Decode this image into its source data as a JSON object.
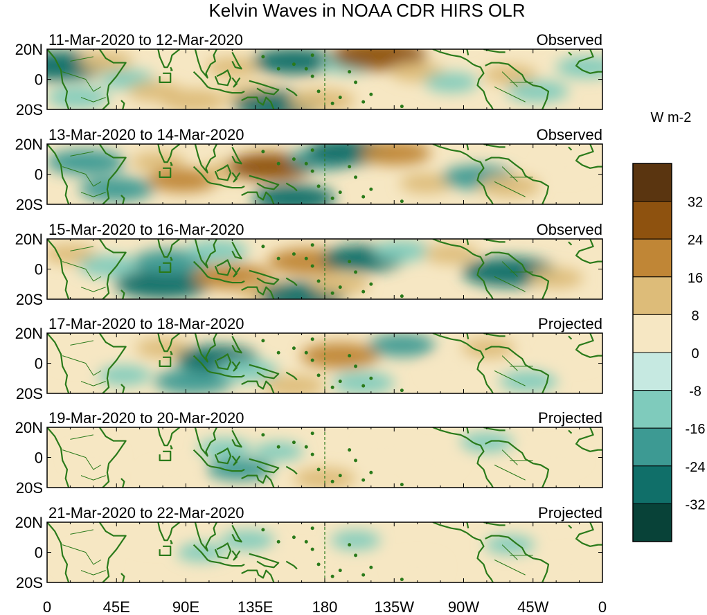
{
  "chart_data": {
    "type": "heatmap",
    "title": "Kelvin Waves in NOAA CDR HIRS OLR",
    "units": "W m-2",
    "x_ticks": [
      "0",
      "45E",
      "90E",
      "135E",
      "180",
      "135W",
      "90W",
      "45W",
      "0"
    ],
    "x_tick_lons": [
      0,
      45,
      90,
      135,
      180,
      225,
      270,
      315,
      360
    ],
    "y_ticks": [
      "20N",
      "0",
      "20S"
    ],
    "y_tick_lats": [
      20,
      0,
      -20
    ],
    "xlim": [
      0,
      360
    ],
    "ylim": [
      -20,
      20
    ],
    "colorbar": {
      "labels": [
        "32",
        "24",
        "16",
        "8",
        "0",
        "-8",
        "-16",
        "-24",
        "-32"
      ],
      "levels": [
        32,
        24,
        16,
        8,
        0,
        -8,
        -16,
        -24,
        -32
      ],
      "colors": [
        "#5a3510",
        "#8e520f",
        "#c08636",
        "#ddbc79",
        "#f6e7c3",
        "#c6e9e1",
        "#7fcbbc",
        "#3d9a93",
        "#106f69",
        "#084238"
      ]
    },
    "panels": [
      {
        "period": "11-Mar-2020 to 12-Mar-2020",
        "status": "Observed",
        "anomalies": [
          {
            "lon": 8,
            "lat": 9,
            "value": -30
          },
          {
            "lon": 20,
            "lat": -12,
            "value": -14
          },
          {
            "lon": 38,
            "lat": 12,
            "value": 10
          },
          {
            "lon": 52,
            "lat": 0,
            "value": -10
          },
          {
            "lon": 70,
            "lat": -8,
            "value": 10
          },
          {
            "lon": 95,
            "lat": -14,
            "value": 16
          },
          {
            "lon": 120,
            "lat": 8,
            "value": 10
          },
          {
            "lon": 135,
            "lat": -10,
            "value": 12
          },
          {
            "lon": 160,
            "lat": 12,
            "value": -24
          },
          {
            "lon": 150,
            "lat": -17,
            "value": -28
          },
          {
            "lon": 178,
            "lat": -14,
            "value": 16
          },
          {
            "lon": 195,
            "lat": 10,
            "value": -10
          },
          {
            "lon": 215,
            "lat": 16,
            "value": 30
          },
          {
            "lon": 240,
            "lat": 5,
            "value": 10
          },
          {
            "lon": 262,
            "lat": -2,
            "value": -10
          },
          {
            "lon": 300,
            "lat": 3,
            "value": 10
          },
          {
            "lon": 318,
            "lat": -8,
            "value": -14
          },
          {
            "lon": 350,
            "lat": 8,
            "value": -14
          }
        ]
      },
      {
        "period": "13-Mar-2020 to 14-Mar-2020",
        "status": "Observed",
        "anomalies": [
          {
            "lon": 25,
            "lat": 8,
            "value": -22
          },
          {
            "lon": 45,
            "lat": -10,
            "value": -20
          },
          {
            "lon": 72,
            "lat": 8,
            "value": 10
          },
          {
            "lon": 88,
            "lat": -4,
            "value": 18
          },
          {
            "lon": 120,
            "lat": 2,
            "value": 12
          },
          {
            "lon": 145,
            "lat": 5,
            "value": 26
          },
          {
            "lon": 178,
            "lat": 10,
            "value": -16
          },
          {
            "lon": 195,
            "lat": 15,
            "value": -24
          },
          {
            "lon": 160,
            "lat": -16,
            "value": -24
          },
          {
            "lon": 226,
            "lat": 14,
            "value": 18
          },
          {
            "lon": 246,
            "lat": -6,
            "value": 10
          },
          {
            "lon": 280,
            "lat": -2,
            "value": -20
          },
          {
            "lon": 300,
            "lat": -8,
            "value": 14
          },
          {
            "lon": 336,
            "lat": 5,
            "value": 8
          }
        ]
      },
      {
        "period": "15-Mar-2020 to 16-Mar-2020",
        "status": "Observed",
        "anomalies": [
          {
            "lon": 15,
            "lat": 10,
            "value": 10
          },
          {
            "lon": 40,
            "lat": 2,
            "value": -14
          },
          {
            "lon": 75,
            "lat": -10,
            "value": -30
          },
          {
            "lon": 80,
            "lat": 5,
            "value": -20
          },
          {
            "lon": 110,
            "lat": 12,
            "value": -14
          },
          {
            "lon": 120,
            "lat": -5,
            "value": 22
          },
          {
            "lon": 145,
            "lat": -15,
            "value": 16
          },
          {
            "lon": 165,
            "lat": -18,
            "value": -26
          },
          {
            "lon": 170,
            "lat": 5,
            "value": 24
          },
          {
            "lon": 190,
            "lat": -10,
            "value": 12
          },
          {
            "lon": 205,
            "lat": 7,
            "value": -24
          },
          {
            "lon": 230,
            "lat": 12,
            "value": -12
          },
          {
            "lon": 262,
            "lat": 10,
            "value": 10
          },
          {
            "lon": 300,
            "lat": -2,
            "value": -30
          },
          {
            "lon": 330,
            "lat": -6,
            "value": 10
          }
        ]
      },
      {
        "period": "17-Mar-2020 to 18-Mar-2020",
        "status": "Projected",
        "anomalies": [
          {
            "lon": 20,
            "lat": 5,
            "value": 8
          },
          {
            "lon": 50,
            "lat": -8,
            "value": -10
          },
          {
            "lon": 75,
            "lat": 10,
            "value": 10
          },
          {
            "lon": 95,
            "lat": -12,
            "value": -22
          },
          {
            "lon": 110,
            "lat": 3,
            "value": -24
          },
          {
            "lon": 130,
            "lat": -5,
            "value": -14
          },
          {
            "lon": 160,
            "lat": -15,
            "value": 14
          },
          {
            "lon": 190,
            "lat": 5,
            "value": 22
          },
          {
            "lon": 205,
            "lat": -13,
            "value": -14
          },
          {
            "lon": 230,
            "lat": 12,
            "value": -16
          },
          {
            "lon": 262,
            "lat": -5,
            "value": 8
          },
          {
            "lon": 286,
            "lat": 10,
            "value": 10
          },
          {
            "lon": 312,
            "lat": -12,
            "value": -12
          },
          {
            "lon": 340,
            "lat": 5,
            "value": 8
          }
        ]
      },
      {
        "period": "19-Mar-2020 to 20-Mar-2020",
        "status": "Projected",
        "anomalies": [
          {
            "lon": 30,
            "lat": 0,
            "value": 8
          },
          {
            "lon": 80,
            "lat": -12,
            "value": 8
          },
          {
            "lon": 115,
            "lat": 6,
            "value": -10
          },
          {
            "lon": 125,
            "lat": -8,
            "value": -16
          },
          {
            "lon": 150,
            "lat": 4,
            "value": -8
          },
          {
            "lon": 180,
            "lat": -14,
            "value": 14
          },
          {
            "lon": 220,
            "lat": 6,
            "value": 8
          },
          {
            "lon": 250,
            "lat": -2,
            "value": 8
          },
          {
            "lon": 285,
            "lat": 10,
            "value": -10
          },
          {
            "lon": 330,
            "lat": 0,
            "value": 8
          }
        ]
      },
      {
        "period": "21-Mar-2020 to 22-Mar-2020",
        "status": "Projected",
        "anomalies": [
          {
            "lon": 25,
            "lat": -5,
            "value": 8
          },
          {
            "lon": 70,
            "lat": 10,
            "value": 8
          },
          {
            "lon": 100,
            "lat": 0,
            "value": -8
          },
          {
            "lon": 130,
            "lat": 8,
            "value": -10
          },
          {
            "lon": 160,
            "lat": -5,
            "value": 8
          },
          {
            "lon": 200,
            "lat": 8,
            "value": -8
          },
          {
            "lon": 240,
            "lat": -10,
            "value": 8
          },
          {
            "lon": 300,
            "lat": 5,
            "value": -8
          },
          {
            "lon": 340,
            "lat": -8,
            "value": 8
          }
        ]
      }
    ]
  }
}
